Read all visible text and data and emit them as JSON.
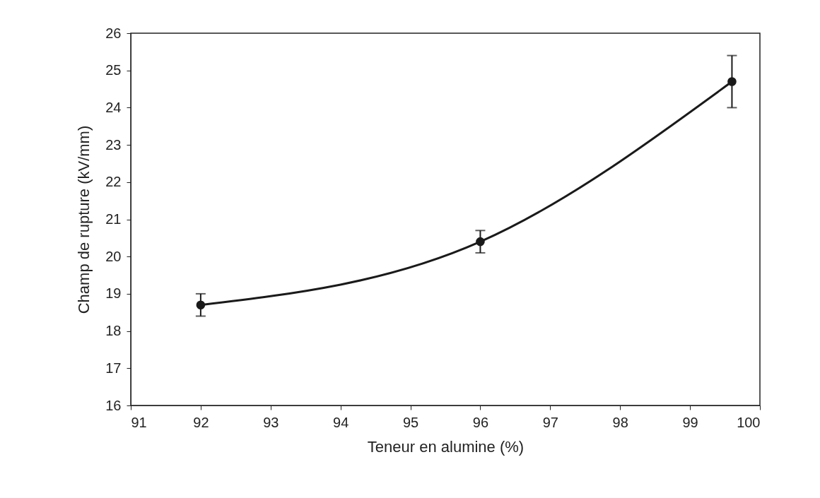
{
  "chart_data": {
    "type": "line",
    "xlabel": "Teneur en alumine (%)",
    "ylabel": "Champ de rupture (kV/mm)",
    "x": [
      92,
      96,
      99.6
    ],
    "series": [
      {
        "color": "#1a1a1a",
        "values": [
          18.7,
          20.4,
          24.7
        ],
        "errors": [
          0.3,
          0.3,
          0.7
        ]
      }
    ],
    "xlim": [
      91,
      100
    ],
    "xticks": [
      91,
      92,
      93,
      94,
      95,
      96,
      97,
      98,
      99,
      100
    ],
    "ylim": [
      16,
      26
    ],
    "yticks": [
      16,
      17,
      18,
      19,
      20,
      21,
      22,
      23,
      24,
      25,
      26
    ],
    "grid": false,
    "marker": "circle",
    "line_style": "solid"
  }
}
